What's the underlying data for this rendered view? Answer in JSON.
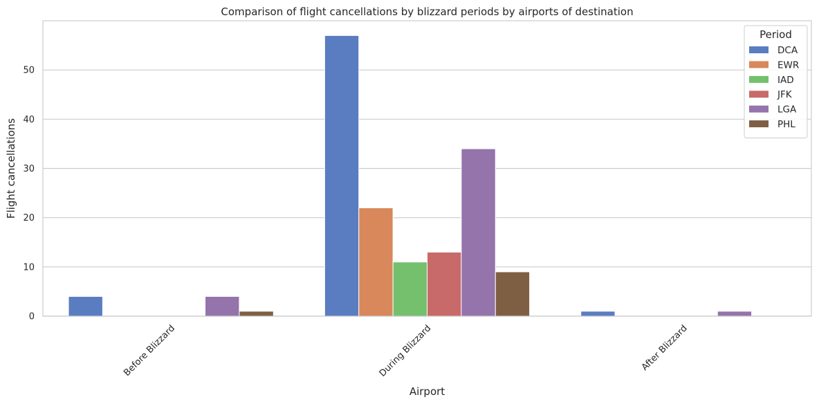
{
  "chart_data": {
    "type": "bar",
    "title": "Comparison of flight cancellations by blizzard periods by airports of destination",
    "xlabel": "Airport",
    "ylabel": "Flight cancellations",
    "categories": [
      "Before Blizzard",
      "During Blizzard",
      "After Blizzard"
    ],
    "ylim": [
      0,
      60
    ],
    "yticks": [
      0,
      10,
      20,
      30,
      40,
      50
    ],
    "grid": "horizontal",
    "legend": {
      "title": "Period",
      "placement": "top-right"
    },
    "series": [
      {
        "name": "DCA",
        "color": "#5a7dc1",
        "values": [
          4,
          57,
          1
        ]
      },
      {
        "name": "EWR",
        "color": "#d8885b",
        "values": [
          0,
          22,
          0
        ]
      },
      {
        "name": "IAD",
        "color": "#74c06d",
        "values": [
          0,
          11,
          0
        ]
      },
      {
        "name": "JFK",
        "color": "#c96a6a",
        "values": [
          0,
          13,
          0
        ]
      },
      {
        "name": "LGA",
        "color": "#9474ab",
        "values": [
          4,
          34,
          1
        ]
      },
      {
        "name": "PHL",
        "color": "#7f5f43",
        "values": [
          1,
          9,
          0
        ]
      }
    ]
  }
}
